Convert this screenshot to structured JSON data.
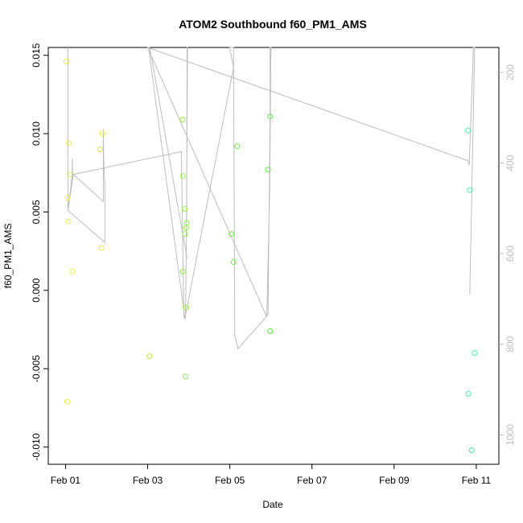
{
  "chart_data": {
    "type": "scatter",
    "title": "ATOM2 Southbound f60_PM1_AMS",
    "xlabel": "Date",
    "ylabel": "f60_PM1_AMS",
    "x_ticks": [
      {
        "label": "Feb 01",
        "value": 1.0
      },
      {
        "label": "Feb 03",
        "value": 3.0
      },
      {
        "label": "Feb 05",
        "value": 5.0
      },
      {
        "label": "Feb 07",
        "value": 7.0
      },
      {
        "label": "Feb 09",
        "value": 9.0
      },
      {
        "label": "Feb 11",
        "value": 11.0
      }
    ],
    "xlim": [
      0.58,
      11.55
    ],
    "ylim": [
      -0.0111,
      0.0155
    ],
    "y_ticks": [
      {
        "label": "-0.010",
        "value": -0.01
      },
      {
        "label": "-0.005",
        "value": -0.005
      },
      {
        "label": "0.000",
        "value": 0.0
      },
      {
        "label": "0.005",
        "value": 0.005
      },
      {
        "label": "0.010",
        "value": 0.01
      },
      {
        "label": "0.015",
        "value": 0.015
      }
    ],
    "y2_ticks": [
      {
        "label": "200",
        "value": 200
      },
      {
        "label": "400",
        "value": 400
      },
      {
        "label": "600",
        "value": 600
      },
      {
        "label": "800",
        "value": 800
      },
      {
        "label": "1000",
        "value": 1000
      }
    ],
    "y2lim": [
      1065,
      145
    ],
    "points": [
      {
        "x": 1.02,
        "y": 0.0146,
        "color": "#eeee44"
      },
      {
        "x": 1.08,
        "y": 0.0094,
        "color": "#eeee44"
      },
      {
        "x": 1.1,
        "y": 0.0074,
        "color": "#eeee44"
      },
      {
        "x": 1.05,
        "y": 0.0059,
        "color": "#eeee44"
      },
      {
        "x": 1.07,
        "y": 0.0044,
        "color": "#eeee44"
      },
      {
        "x": 1.17,
        "y": 0.0012,
        "color": "#eeee44"
      },
      {
        "x": 1.04,
        "y": -0.0071,
        "color": "#eeee44"
      },
      {
        "x": 1.84,
        "y": 0.009,
        "color": "#e4ee44"
      },
      {
        "x": 1.9,
        "y": 0.01,
        "color": "#e4ee44"
      },
      {
        "x": 1.88,
        "y": 0.0027,
        "color": "#e4ee44"
      },
      {
        "x": 3.04,
        "y": -0.0042,
        "color": "#bcee44"
      },
      {
        "x": 3.85,
        "y": 0.0109,
        "color": "#94ee44"
      },
      {
        "x": 3.86,
        "y": 0.0073,
        "color": "#94ee44"
      },
      {
        "x": 3.9,
        "y": 0.0052,
        "color": "#94ee44"
      },
      {
        "x": 3.95,
        "y": 0.0043,
        "color": "#94ee44"
      },
      {
        "x": 3.94,
        "y": 0.004,
        "color": "#94ee44"
      },
      {
        "x": 3.91,
        "y": 0.0036,
        "color": "#94ee44"
      },
      {
        "x": 3.86,
        "y": 0.0012,
        "color": "#94ee44"
      },
      {
        "x": 3.94,
        "y": -0.0011,
        "color": "#94ee44"
      },
      {
        "x": 3.92,
        "y": -0.0055,
        "color": "#94ee44"
      },
      {
        "x": 5.04,
        "y": 0.0036,
        "color": "#6aee44"
      },
      {
        "x": 5.09,
        "y": 0.0018,
        "color": "#6aee44"
      },
      {
        "x": 5.18,
        "y": 0.0092,
        "color": "#6aee44"
      },
      {
        "x": 5.93,
        "y": 0.0077,
        "color": "#5aee44"
      },
      {
        "x": 5.98,
        "y": 0.0111,
        "color": "#5aee44"
      },
      {
        "x": 5.98,
        "y": -0.0026,
        "color": "#5aee44"
      },
      {
        "x": 10.8,
        "y": 0.0102,
        "color": "#44eeaa"
      },
      {
        "x": 10.84,
        "y": 0.0064,
        "color": "#44eeaa"
      },
      {
        "x": 10.96,
        "y": -0.004,
        "color": "#44eeaa"
      },
      {
        "x": 10.81,
        "y": -0.0066,
        "color": "#44eeaa"
      },
      {
        "x": 10.89,
        "y": -0.0102,
        "color": "#44eeaa"
      }
    ],
    "secondary_series": {
      "color": "#bdbdbd",
      "axis": "right",
      "points": [
        [
          1.06,
          120
        ],
        [
          1.06,
          505
        ],
        [
          1.16,
          430
        ],
        [
          1.17,
          390
        ],
        [
          1.17,
          430
        ],
        [
          1.19,
          425
        ],
        [
          1.92,
          485
        ],
        [
          1.92,
          325
        ],
        [
          1.93,
          395
        ],
        [
          1.96,
          455
        ],
        [
          1.96,
          575
        ],
        [
          1.06,
          505
        ],
        [
          1.19,
          425
        ],
        [
          3.82,
          375
        ],
        [
          3.88,
          740
        ],
        [
          3.92,
          740
        ],
        [
          3.95,
          510
        ],
        [
          3.96,
          120
        ],
        [
          3.97,
          120
        ],
        [
          3.94,
          600
        ],
        [
          3.96,
          610
        ],
        [
          3.92,
          590
        ],
        [
          3.05,
          145
        ],
        [
          3.02,
          145
        ],
        [
          3.86,
          710
        ],
        [
          3.9,
          745
        ],
        [
          5.09,
          190
        ],
        [
          5.0,
          120
        ],
        [
          5.09,
          120
        ],
        [
          5.12,
          780
        ],
        [
          5.2,
          810
        ],
        [
          5.93,
          735
        ],
        [
          5.98,
          290
        ],
        [
          5.98,
          120
        ],
        [
          6.0,
          120
        ],
        [
          5.97,
          460
        ],
        [
          5.9,
          740
        ],
        [
          3.0,
          145
        ],
        [
          10.8,
          395
        ],
        [
          10.83,
          405
        ],
        [
          10.93,
          120
        ],
        [
          10.96,
          120
        ],
        [
          10.87,
          560
        ],
        [
          10.84,
          690
        ]
      ]
    }
  }
}
